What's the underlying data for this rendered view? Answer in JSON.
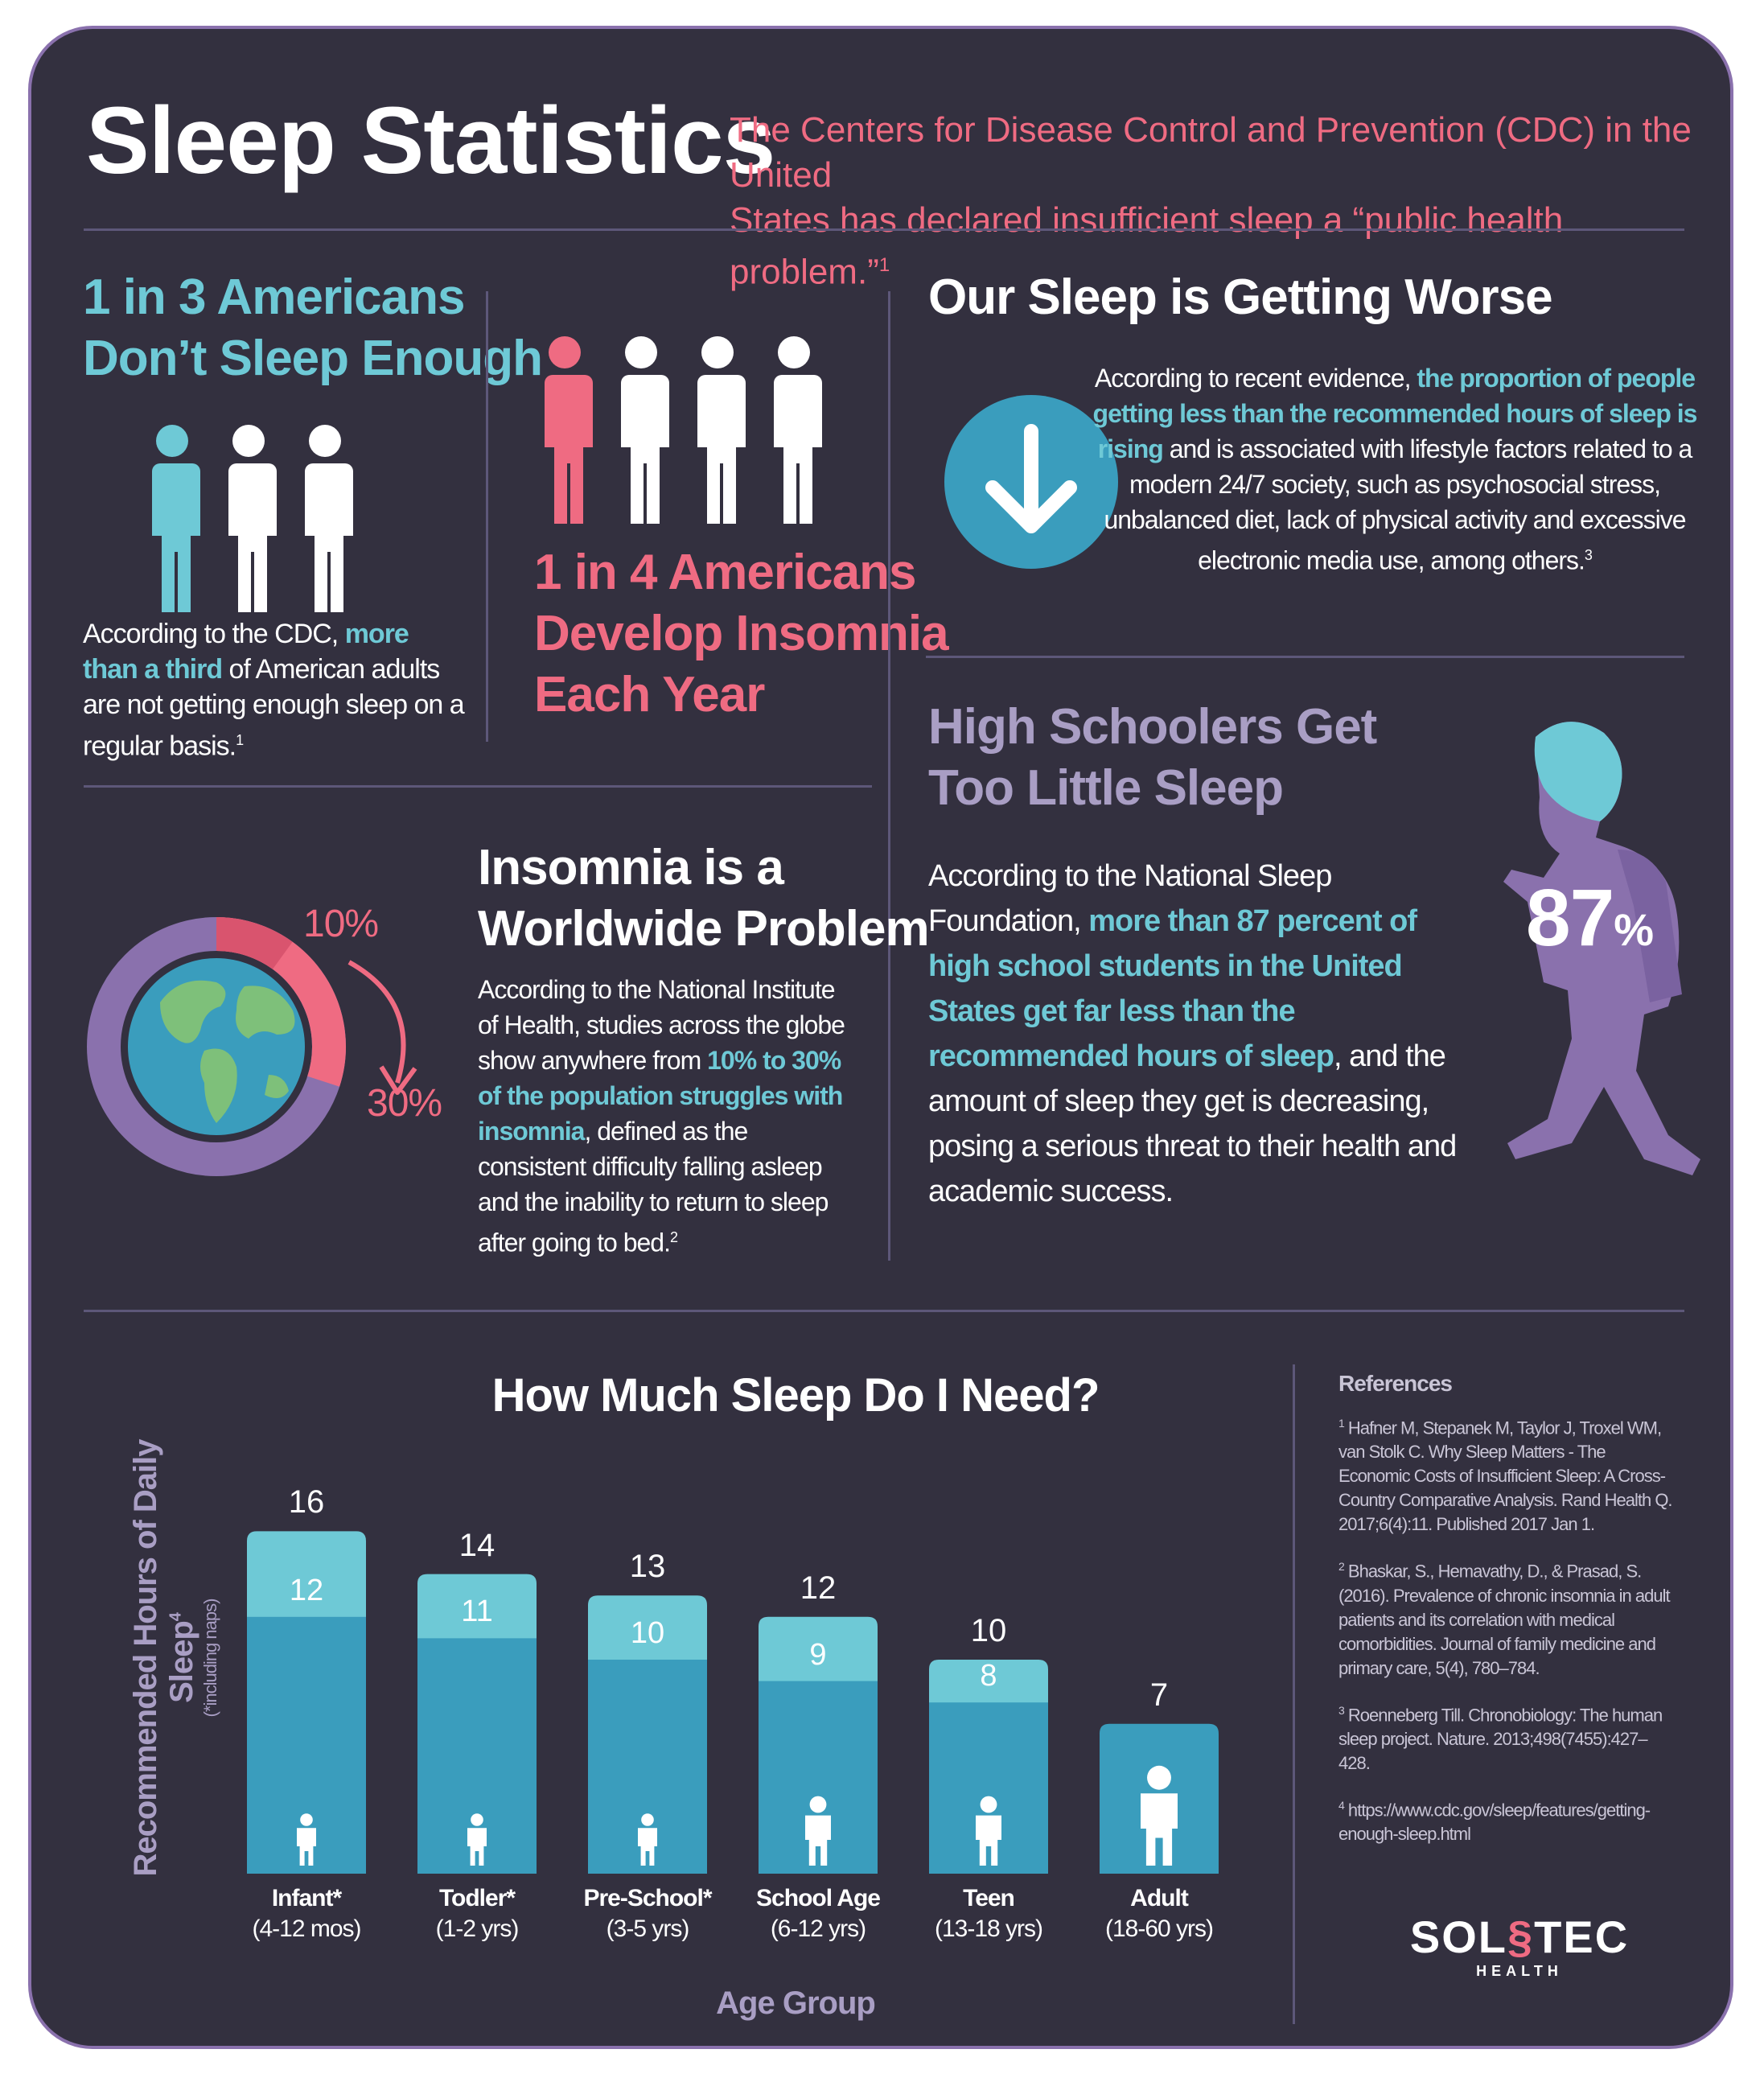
{
  "header": {
    "title": "Sleep Statistics",
    "subtitle_line1": "The Centers for Disease Control and Prevention (CDC) in the United",
    "subtitle_line2": "States has declared insufficient sleep a “public health problem.”",
    "subtitle_ref": "1"
  },
  "panel_1in3": {
    "heading_line1": "1 in 3 Americans",
    "heading_line2": "Don’t Sleep Enough",
    "text_a": "According to the CDC, ",
    "text_b": "more than a third",
    "text_c": " of American adults are not getting enough sleep on a regular basis.",
    "ref": "1"
  },
  "panel_1in4": {
    "heading_line1": "1 in 4 Americans",
    "heading_line2": "Develop Insomnia",
    "heading_line3": "Each Year"
  },
  "panel_worse": {
    "heading": "Our Sleep is Getting Worse",
    "text_a": "According to recent evidence, ",
    "text_b": "the proportion of people getting less than the recommended hours of sleep is rising",
    "text_c": " and is associated with lifestyle factors related to a modern 24/7 society, such as psychosocial stress, unbalanced diet, lack of physical activity and excessive electronic media use, among others.",
    "ref": "3"
  },
  "panel_worldwide": {
    "heading_line1": "Insomnia is a",
    "heading_line2": "Worldwide Problem",
    "label_low": "10%",
    "label_high": "30%",
    "ring_low_fraction": 0.1,
    "ring_high_fraction": 0.3,
    "text_a": "According to the National Institute of Health, studies across the globe show anywhere from ",
    "text_b": "10% to 30% of the population struggles with insomnia",
    "text_c": ", defined as the consistent difficulty falling asleep and the inability to return to sleep after going to bed.",
    "ref": "2"
  },
  "panel_highschool": {
    "heading_line1": "High Schoolers Get",
    "heading_line2": "Too Little Sleep",
    "percent_number": "87",
    "percent_sign": "%",
    "text_a": "According to the National Sleep Foundation, ",
    "text_b": "more than 87 percent of high school students in the United States get far less than the recommended hours of sleep",
    "text_c": ", and the amount of sleep they get is decreasing, posing a serious threat to their health and academic success."
  },
  "chart_data": {
    "type": "bar",
    "title": "How Much Sleep Do I Need?",
    "ylabel": "Recommended Hours of Daily Sleep",
    "ylabel_ref": "4",
    "ylabel_note": "(*including naps)",
    "xlabel": "Age Group",
    "categories": [
      {
        "name": "Infant*",
        "range": "(4-12 mos)"
      },
      {
        "name": "Todler*",
        "range": "(1-2 yrs)"
      },
      {
        "name": "Pre-School*",
        "range": "(3-5 yrs)"
      },
      {
        "name": "School Age",
        "range": "(6-12 yrs)"
      },
      {
        "name": "Teen",
        "range": "(13-18 yrs)"
      },
      {
        "name": "Adult",
        "range": "(18-60 yrs)"
      }
    ],
    "series": [
      {
        "name": "max",
        "values": [
          16,
          14,
          13,
          12,
          10,
          7
        ]
      },
      {
        "name": "min",
        "values": [
          12,
          11,
          10,
          9,
          8,
          7
        ]
      }
    ],
    "icons": [
      "infant-icon",
      "toddler-icon",
      "preschool-child-icon",
      "school-child-icon",
      "teen-icon",
      "adult-icon"
    ],
    "colors": {
      "max": "#6ec9d6",
      "min": "#3a9dbd"
    }
  },
  "references": {
    "heading": "References",
    "items": [
      {
        "n": "1",
        "text": "Hafner M, Stepanek M, Taylor J, Troxel WM, van Stolk C. Why Sleep Matters - The Economic Costs of Insufficient Sleep: A Cross-Country Comparative Analysis. Rand Health Q. 2017;6(4):11. Published 2017 Jan 1."
      },
      {
        "n": "2",
        "text": "Bhaskar, S., Hemavathy, D., & Prasad, S. (2016). Prevalence of chronic insomnia in adult patients and its correlation with medical comorbidities. Journal of family medicine and primary care, 5(4), 780–784."
      },
      {
        "n": "3",
        "text": "Roenneberg Till. Chronobiology: The human sleep project. Nature. 2013;498(7455):427–428."
      },
      {
        "n": "4",
        "text": "https://www.cdc.gov/sleep/features/getting-enough-sleep.html"
      }
    ]
  },
  "logo": {
    "left": "SOL",
    "right": "TEC",
    "sub": "HEALTH"
  },
  "colors": {
    "background": "#33303f",
    "teal": "#6ec9d6",
    "pink": "#ef6b82",
    "lavender": "#a99ec4",
    "purple": "#8a71ad",
    "blue": "#3a9dbd"
  }
}
